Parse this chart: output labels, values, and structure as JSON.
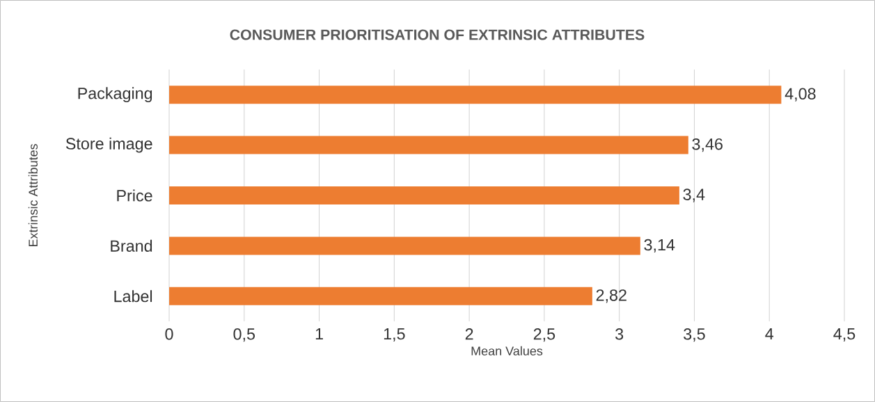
{
  "chart_data": {
    "type": "bar",
    "orientation": "horizontal",
    "title": "CONSUMER PRIORITISATION OF EXTRINSIC ATTRIBUTES",
    "xlabel": "Mean Values",
    "ylabel": "Extrinsic Attributes",
    "categories": [
      "Packaging",
      "Store image",
      "Price",
      "Brand",
      "Label"
    ],
    "values": [
      4.08,
      3.46,
      3.4,
      3.14,
      2.82
    ],
    "value_labels": [
      "4,08",
      "3,46",
      "3,4",
      "3,14",
      "2,82"
    ],
    "color": "#ed7d31",
    "xlim": [
      0,
      4.5
    ],
    "xticks": [
      0,
      {
        "value": 0.5,
        "label": "0,5"
      },
      1,
      {
        "value": 1.5,
        "label": "1,5"
      },
      2,
      {
        "value": 2.5,
        "label": "2,5"
      },
      3,
      {
        "value": 3.5,
        "label": "3,5"
      },
      4,
      {
        "value": 4.5,
        "label": "4,5"
      }
    ],
    "grid": "x"
  }
}
